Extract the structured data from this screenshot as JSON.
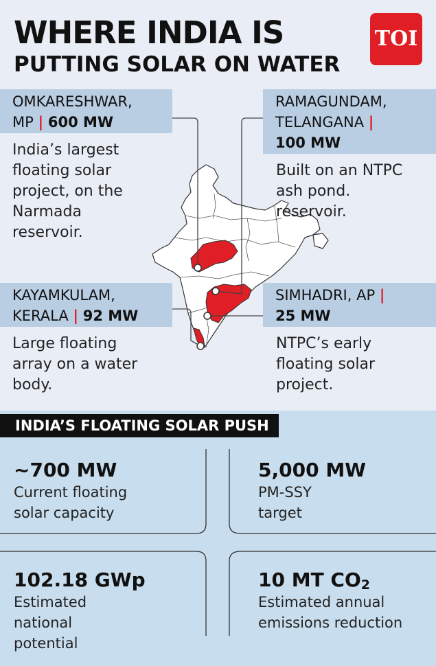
{
  "header": {
    "title_line1": "WHERE INDIA IS",
    "title_line2": "PUTTING SOLAR ON WATER",
    "logo_text": "TOI"
  },
  "locations": [
    {
      "name": "OMKARESHWAR,",
      "state": "MP",
      "capacity": "600 MW",
      "description": "India’s largest floating solar project, on the Narmada reservoir."
    },
    {
      "name": "RAMAGUNDAM,",
      "state": "TELANGANA",
      "capacity": "100 MW",
      "description": "Built on an NTPC ash pond. reservoir."
    },
    {
      "name": "KAYAMKULAM,",
      "state": "KERALA",
      "capacity": "92 MW",
      "description": "Large floating array on a water body."
    },
    {
      "name": "SIMHADRI,",
      "state": "AP",
      "capacity": "25 MW",
      "description": "NTPC’s early floating solar project."
    }
  ],
  "push": {
    "title": "INDIA’S FLOATING SOLAR PUSH",
    "stats": [
      {
        "value": "~700 MW",
        "label": "Current floating solar capacity"
      },
      {
        "value": "5,000 MW",
        "label": "PM-SSY target"
      },
      {
        "value": "102.18 GWp",
        "label": "Estimated national potential"
      },
      {
        "value_main": "10 MT CO",
        "value_sub": "2",
        "label": "Estimated annual emissions reduction"
      }
    ]
  },
  "colors": {
    "accent_red": "#e01e25",
    "label_blue": "#b9cde3",
    "top_bg": "#e9eef6",
    "bottom_bg": "#c8dded",
    "dark": "#111111"
  }
}
